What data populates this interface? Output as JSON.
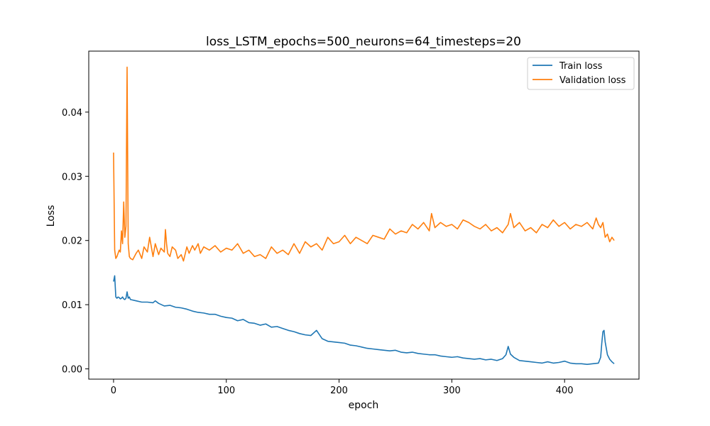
{
  "chart_data": {
    "type": "line",
    "title": "loss_LSTM_epochs=500_neurons=64_timesteps=20",
    "xlabel": "epoch",
    "ylabel": "Loss",
    "xlim": [
      -22,
      466
    ],
    "ylim": [
      -0.0016,
      0.0495
    ],
    "xticks": [
      0,
      100,
      200,
      300,
      400
    ],
    "yticks": [
      0.0,
      0.01,
      0.02,
      0.03,
      0.04
    ],
    "ytick_labels": [
      "0.00",
      "0.01",
      "0.02",
      "0.03",
      "0.04"
    ],
    "grid": false,
    "legend": "top-right",
    "series": [
      {
        "name": "Train loss",
        "color": "#1f77b4",
        "x": [
          0,
          1,
          2,
          3,
          4,
          5,
          6,
          7,
          8,
          9,
          10,
          11,
          12,
          13,
          14,
          15,
          20,
          25,
          30,
          35,
          37,
          40,
          45,
          50,
          55,
          60,
          65,
          70,
          75,
          80,
          85,
          90,
          95,
          100,
          105,
          110,
          115,
          120,
          125,
          130,
          135,
          140,
          145,
          150,
          155,
          160,
          165,
          170,
          175,
          180,
          185,
          190,
          195,
          200,
          205,
          210,
          215,
          220,
          225,
          230,
          235,
          240,
          245,
          250,
          255,
          260,
          265,
          270,
          275,
          280,
          285,
          290,
          295,
          300,
          305,
          310,
          315,
          320,
          325,
          330,
          335,
          340,
          345,
          348,
          350,
          352,
          355,
          360,
          365,
          370,
          375,
          380,
          385,
          390,
          395,
          400,
          405,
          410,
          415,
          420,
          425,
          430,
          432,
          433,
          434,
          435,
          436,
          438,
          440,
          442,
          444
        ],
        "values": [
          0.0136,
          0.0145,
          0.0112,
          0.011,
          0.0112,
          0.0111,
          0.0109,
          0.011,
          0.0112,
          0.0109,
          0.0108,
          0.011,
          0.012,
          0.011,
          0.0112,
          0.0108,
          0.0106,
          0.0104,
          0.0104,
          0.0103,
          0.0106,
          0.0102,
          0.0098,
          0.0099,
          0.0096,
          0.0095,
          0.0093,
          0.009,
          0.0088,
          0.0087,
          0.0085,
          0.0085,
          0.0082,
          0.008,
          0.0079,
          0.0075,
          0.0077,
          0.0072,
          0.0071,
          0.0068,
          0.007,
          0.0065,
          0.0066,
          0.0063,
          0.006,
          0.0058,
          0.0055,
          0.0053,
          0.0052,
          0.006,
          0.0047,
          0.0043,
          0.0042,
          0.0041,
          0.004,
          0.0037,
          0.0036,
          0.0034,
          0.0032,
          0.0031,
          0.003,
          0.0029,
          0.0028,
          0.0029,
          0.0026,
          0.0025,
          0.0026,
          0.0024,
          0.0023,
          0.0022,
          0.0022,
          0.002,
          0.0019,
          0.0018,
          0.0019,
          0.0017,
          0.0016,
          0.0015,
          0.0016,
          0.0014,
          0.0015,
          0.0013,
          0.0016,
          0.0022,
          0.0035,
          0.0023,
          0.0018,
          0.0013,
          0.0012,
          0.0011,
          0.001,
          0.0009,
          0.0011,
          0.0009,
          0.001,
          0.0012,
          0.0009,
          0.0008,
          0.0008,
          0.0007,
          0.0008,
          0.0009,
          0.0018,
          0.004,
          0.0058,
          0.006,
          0.0042,
          0.0022,
          0.0015,
          0.0011,
          0.0008
        ]
      },
      {
        "name": "Validation loss",
        "color": "#ff7f0e",
        "x": [
          0,
          1,
          2,
          3,
          4,
          5,
          6,
          7,
          8,
          9,
          10,
          11,
          12,
          13,
          14,
          15,
          17,
          20,
          22,
          25,
          27,
          30,
          32,
          35,
          37,
          40,
          42,
          45,
          46,
          47,
          48,
          50,
          52,
          55,
          57,
          60,
          62,
          65,
          67,
          70,
          72,
          75,
          77,
          80,
          85,
          90,
          95,
          100,
          105,
          110,
          115,
          120,
          125,
          130,
          135,
          140,
          145,
          150,
          155,
          160,
          165,
          170,
          175,
          180,
          185,
          190,
          195,
          200,
          205,
          210,
          215,
          220,
          225,
          230,
          235,
          240,
          245,
          250,
          255,
          260,
          265,
          270,
          275,
          280,
          282,
          285,
          290,
          295,
          300,
          305,
          310,
          315,
          320,
          325,
          330,
          335,
          340,
          345,
          350,
          352,
          355,
          360,
          365,
          370,
          375,
          380,
          385,
          390,
          395,
          400,
          405,
          410,
          415,
          420,
          425,
          428,
          430,
          432,
          434,
          436,
          438,
          440,
          442,
          444
        ],
        "values": [
          0.0337,
          0.0185,
          0.0172,
          0.0175,
          0.018,
          0.0185,
          0.0182,
          0.0215,
          0.0195,
          0.026,
          0.0205,
          0.0222,
          0.047,
          0.0195,
          0.0175,
          0.0172,
          0.017,
          0.018,
          0.0185,
          0.0172,
          0.019,
          0.0182,
          0.0205,
          0.0175,
          0.0195,
          0.0178,
          0.0188,
          0.0182,
          0.0217,
          0.0195,
          0.018,
          0.0175,
          0.019,
          0.0185,
          0.0172,
          0.0178,
          0.0168,
          0.019,
          0.018,
          0.0192,
          0.0185,
          0.0195,
          0.018,
          0.019,
          0.0185,
          0.0192,
          0.0182,
          0.0188,
          0.0185,
          0.0195,
          0.018,
          0.0185,
          0.0175,
          0.0178,
          0.0172,
          0.019,
          0.018,
          0.0185,
          0.0178,
          0.0195,
          0.018,
          0.0198,
          0.019,
          0.0195,
          0.0185,
          0.0205,
          0.0195,
          0.0198,
          0.0208,
          0.0195,
          0.0205,
          0.02,
          0.0195,
          0.0208,
          0.0205,
          0.0202,
          0.0218,
          0.021,
          0.0215,
          0.0212,
          0.0225,
          0.0218,
          0.0228,
          0.0215,
          0.0242,
          0.022,
          0.0228,
          0.0222,
          0.0225,
          0.0218,
          0.0232,
          0.0228,
          0.0222,
          0.0218,
          0.0225,
          0.0215,
          0.022,
          0.0212,
          0.0225,
          0.0242,
          0.022,
          0.0228,
          0.0215,
          0.022,
          0.0212,
          0.0225,
          0.022,
          0.0232,
          0.0222,
          0.0228,
          0.0218,
          0.0225,
          0.0222,
          0.0228,
          0.0218,
          0.0235,
          0.0225,
          0.022,
          0.0228,
          0.0205,
          0.021,
          0.0198,
          0.0205,
          0.02
        ]
      }
    ]
  }
}
